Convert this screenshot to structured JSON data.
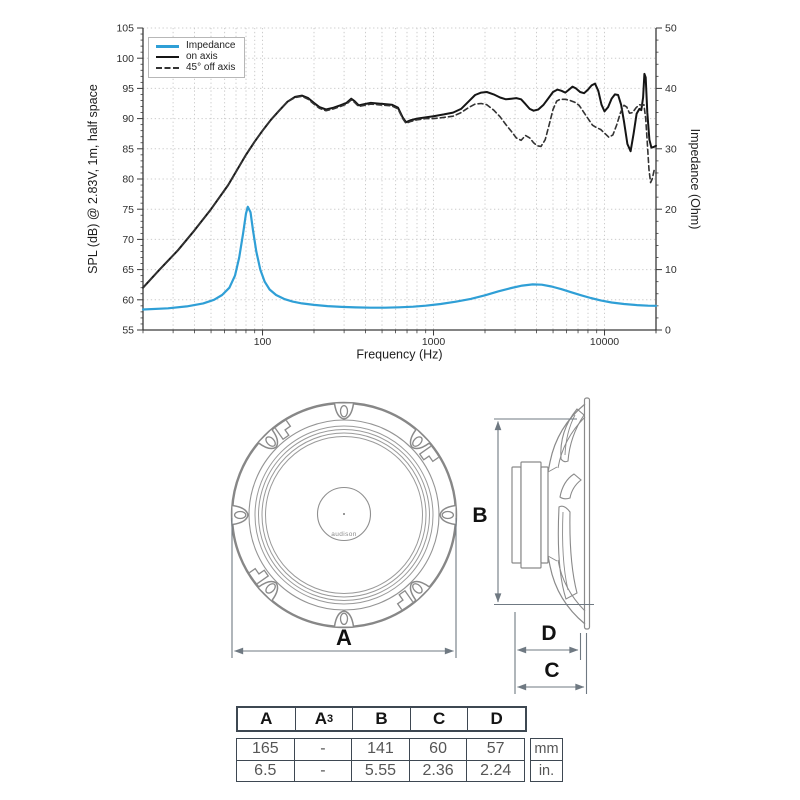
{
  "chart_data": {
    "type": "line",
    "title": "",
    "xlabel": "Frequency (Hz)",
    "ylabel_left": "SPL (dB) @ 2.83V, 1m, half space",
    "ylabel_right": "Impedance (Ohm)",
    "x_scale": "log",
    "xlim": [
      20,
      20000
    ],
    "ylim_left": [
      55,
      105
    ],
    "ylim_right": [
      0,
      50
    ],
    "x_ticks_labeled": [
      100,
      1000,
      10000
    ],
    "y_ticks_left": [
      55,
      60,
      65,
      70,
      75,
      80,
      85,
      90,
      95,
      100,
      105
    ],
    "y_ticks_right": [
      0,
      10,
      20,
      30,
      40,
      50
    ],
    "grid": "dotted",
    "legend_position": "top-left",
    "series": [
      {
        "name": "Impedance",
        "axis": "right",
        "color": "#2f9fd6",
        "style": "solid",
        "width": 2.2,
        "points": [
          [
            20,
            3.4
          ],
          [
            28,
            3.6
          ],
          [
            36,
            3.9
          ],
          [
            45,
            4.4
          ],
          [
            52,
            5.0
          ],
          [
            58,
            5.8
          ],
          [
            64,
            7.0
          ],
          [
            69,
            9.0
          ],
          [
            73,
            12.0
          ],
          [
            77,
            16.0
          ],
          [
            80,
            19.3
          ],
          [
            82,
            20.4
          ],
          [
            85,
            19.5
          ],
          [
            88,
            16.5
          ],
          [
            92,
            13.0
          ],
          [
            97,
            10.0
          ],
          [
            103,
            8.0
          ],
          [
            110,
            6.7
          ],
          [
            120,
            5.8
          ],
          [
            135,
            5.1
          ],
          [
            150,
            4.7
          ],
          [
            170,
            4.4
          ],
          [
            200,
            4.15
          ],
          [
            240,
            3.95
          ],
          [
            290,
            3.82
          ],
          [
            350,
            3.74
          ],
          [
            430,
            3.7
          ],
          [
            520,
            3.7
          ],
          [
            630,
            3.76
          ],
          [
            760,
            3.86
          ],
          [
            900,
            4.02
          ],
          [
            1100,
            4.3
          ],
          [
            1350,
            4.68
          ],
          [
            1650,
            5.15
          ],
          [
            2000,
            5.75
          ],
          [
            2400,
            6.4
          ],
          [
            2850,
            6.95
          ],
          [
            3300,
            7.35
          ],
          [
            3800,
            7.55
          ],
          [
            4300,
            7.5
          ],
          [
            4900,
            7.2
          ],
          [
            5600,
            6.75
          ],
          [
            6400,
            6.25
          ],
          [
            7300,
            5.75
          ],
          [
            8300,
            5.3
          ],
          [
            9500,
            4.9
          ],
          [
            11000,
            4.55
          ],
          [
            13000,
            4.3
          ],
          [
            15500,
            4.12
          ],
          [
            18000,
            4.02
          ],
          [
            20000,
            4.0
          ]
        ]
      },
      {
        "name": "on axis",
        "axis": "left",
        "color": "#151515",
        "style": "solid",
        "width": 2.0,
        "points": [
          [
            20,
            62
          ],
          [
            25,
            65
          ],
          [
            32,
            68.2
          ],
          [
            40,
            71.5
          ],
          [
            50,
            75
          ],
          [
            63,
            79
          ],
          [
            80,
            84
          ],
          [
            90,
            86.2
          ],
          [
            100,
            88
          ],
          [
            112,
            89.8
          ],
          [
            125,
            91.3
          ],
          [
            140,
            92.8
          ],
          [
            155,
            93.6
          ],
          [
            170,
            93.8
          ],
          [
            185,
            93.4
          ],
          [
            200,
            92.6
          ],
          [
            215,
            91.9
          ],
          [
            235,
            91.5
          ],
          [
            260,
            91.8
          ],
          [
            285,
            92.2
          ],
          [
            310,
            92.6
          ],
          [
            330,
            93.3
          ],
          [
            345,
            92.9
          ],
          [
            365,
            92.2
          ],
          [
            395,
            92.4
          ],
          [
            430,
            92.6
          ],
          [
            470,
            92.5
          ],
          [
            520,
            92.4
          ],
          [
            570,
            92.3
          ],
          [
            620,
            91.8
          ],
          [
            660,
            90.2
          ],
          [
            690,
            89.4
          ],
          [
            730,
            89.7
          ],
          [
            800,
            90
          ],
          [
            900,
            90.2
          ],
          [
            1000,
            90.4
          ],
          [
            1150,
            90.7
          ],
          [
            1300,
            91
          ],
          [
            1450,
            91.6
          ],
          [
            1600,
            92.8
          ],
          [
            1750,
            93.9
          ],
          [
            1900,
            94.3
          ],
          [
            2050,
            94.4
          ],
          [
            2250,
            94
          ],
          [
            2450,
            93.5
          ],
          [
            2650,
            93.2
          ],
          [
            2850,
            93.3
          ],
          [
            3050,
            93.4
          ],
          [
            3250,
            93.2
          ],
          [
            3450,
            92.4
          ],
          [
            3650,
            91.6
          ],
          [
            3850,
            91.3
          ],
          [
            4100,
            91.5
          ],
          [
            4400,
            92.3
          ],
          [
            4700,
            93.4
          ],
          [
            5000,
            94.4
          ],
          [
            5300,
            94.8
          ],
          [
            5600,
            94.6
          ],
          [
            5900,
            94.3
          ],
          [
            6200,
            94.8
          ],
          [
            6500,
            95.3
          ],
          [
            6800,
            95
          ],
          [
            7200,
            94.4
          ],
          [
            7600,
            94.2
          ],
          [
            8000,
            94.8
          ],
          [
            8400,
            95.5
          ],
          [
            8800,
            95.8
          ],
          [
            9200,
            94.6
          ],
          [
            9600,
            92.3
          ],
          [
            10000,
            91.2
          ],
          [
            10500,
            91.9
          ],
          [
            11000,
            93.3
          ],
          [
            11500,
            94
          ],
          [
            12000,
            93.9
          ],
          [
            12500,
            92.3
          ],
          [
            13000,
            89.5
          ],
          [
            13600,
            85.8
          ],
          [
            14200,
            84.6
          ],
          [
            14800,
            87.5
          ],
          [
            15400,
            90.8
          ],
          [
            16000,
            91.6
          ],
          [
            16400,
            91.4
          ],
          [
            16800,
            93.5
          ],
          [
            17100,
            97.4
          ],
          [
            17400,
            96.8
          ],
          [
            17800,
            91
          ],
          [
            18300,
            86.5
          ],
          [
            18800,
            85.2
          ],
          [
            19400,
            85.3
          ],
          [
            20000,
            85.5
          ]
        ]
      },
      {
        "name": "45° off axis",
        "axis": "left",
        "color": "#333333",
        "style": "dashed",
        "width": 1.6,
        "points": [
          [
            20,
            62
          ],
          [
            25,
            65
          ],
          [
            32,
            68.2
          ],
          [
            40,
            71.5
          ],
          [
            50,
            75
          ],
          [
            63,
            79
          ],
          [
            80,
            84
          ],
          [
            90,
            86.2
          ],
          [
            100,
            88
          ],
          [
            112,
            89.8
          ],
          [
            125,
            91.3
          ],
          [
            140,
            92.8
          ],
          [
            155,
            93.5
          ],
          [
            170,
            93.7
          ],
          [
            185,
            93.2
          ],
          [
            200,
            92.4
          ],
          [
            215,
            91.7
          ],
          [
            235,
            91.3
          ],
          [
            260,
            91.6
          ],
          [
            285,
            92
          ],
          [
            310,
            92.4
          ],
          [
            330,
            93.1
          ],
          [
            345,
            92.7
          ],
          [
            365,
            92
          ],
          [
            395,
            92.2
          ],
          [
            430,
            92.4
          ],
          [
            470,
            92.3
          ],
          [
            520,
            92.2
          ],
          [
            570,
            92.1
          ],
          [
            620,
            91.6
          ],
          [
            660,
            90
          ],
          [
            690,
            89.2
          ],
          [
            730,
            89.5
          ],
          [
            800,
            89.8
          ],
          [
            900,
            90
          ],
          [
            1000,
            90
          ],
          [
            1150,
            90.2
          ],
          [
            1300,
            90.4
          ],
          [
            1450,
            91
          ],
          [
            1600,
            91.8
          ],
          [
            1750,
            92.4
          ],
          [
            1900,
            92.5
          ],
          [
            2050,
            92.3
          ],
          [
            2250,
            91.4
          ],
          [
            2450,
            90.3
          ],
          [
            2650,
            89
          ],
          [
            2850,
            87.9
          ],
          [
            3050,
            86.8
          ],
          [
            3250,
            86.4
          ],
          [
            3450,
            87.2
          ],
          [
            3650,
            86.8
          ],
          [
            3850,
            86
          ],
          [
            4050,
            85.5
          ],
          [
            4250,
            85.4
          ],
          [
            4500,
            86.5
          ],
          [
            4750,
            89
          ],
          [
            5000,
            91.5
          ],
          [
            5250,
            92.9
          ],
          [
            5500,
            93.2
          ],
          [
            5900,
            93.2
          ],
          [
            6300,
            93
          ],
          [
            6700,
            92.7
          ],
          [
            7100,
            92.2
          ],
          [
            7500,
            91.2
          ],
          [
            8000,
            90
          ],
          [
            8500,
            88.9
          ],
          [
            9000,
            88.5
          ],
          [
            9500,
            88.2
          ],
          [
            10000,
            87.6
          ],
          [
            10600,
            86.9
          ],
          [
            11200,
            87.3
          ],
          [
            11800,
            89
          ],
          [
            12400,
            91
          ],
          [
            13000,
            92.2
          ],
          [
            13500,
            91.9
          ],
          [
            14000,
            90.9
          ],
          [
            14600,
            91
          ],
          [
            15300,
            91.8
          ],
          [
            16000,
            92.3
          ],
          [
            16600,
            92.2
          ],
          [
            17000,
            92.3
          ],
          [
            17400,
            90
          ],
          [
            17800,
            86
          ],
          [
            18200,
            81.5
          ],
          [
            18600,
            79.4
          ],
          [
            19000,
            80
          ],
          [
            19500,
            81.4
          ],
          [
            20000,
            81
          ]
        ]
      }
    ]
  },
  "drawings": {
    "front": {
      "dim_label": "A",
      "hub_text": "audison"
    },
    "side": {
      "dim_b": "B",
      "dim_d": "D",
      "dim_c": "C"
    }
  },
  "dims_table": {
    "headers": [
      {
        "text": "A"
      },
      {
        "text": "A",
        "sub": "3"
      },
      {
        "text": "B"
      },
      {
        "text": "C"
      },
      {
        "text": "D"
      }
    ],
    "rows": [
      {
        "values": [
          "165",
          "-",
          "141",
          "60",
          "57"
        ],
        "unit": "mm"
      },
      {
        "values": [
          "6.5",
          "-",
          "5.55",
          "2.36",
          "2.24"
        ],
        "unit": "in."
      }
    ]
  }
}
